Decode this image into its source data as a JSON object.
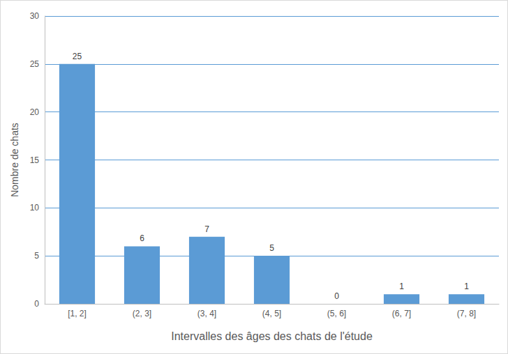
{
  "chart_data": {
    "type": "bar",
    "categories": [
      "[1, 2]",
      "(2, 3]",
      "(3, 4]",
      "(4, 5]",
      "(5, 6]",
      "(6, 7]",
      "(7, 8]"
    ],
    "values": [
      25,
      6,
      7,
      5,
      0,
      1,
      1
    ],
    "color": "#5b9bd5",
    "x_label": "Intervalles des âges des chats de l'étude",
    "y_label": "Nombre de chats",
    "ylim": [
      0,
      30
    ],
    "yticks": [
      0,
      5,
      10,
      15,
      20,
      25,
      30
    ],
    "grid": true,
    "data_labels": true
  }
}
